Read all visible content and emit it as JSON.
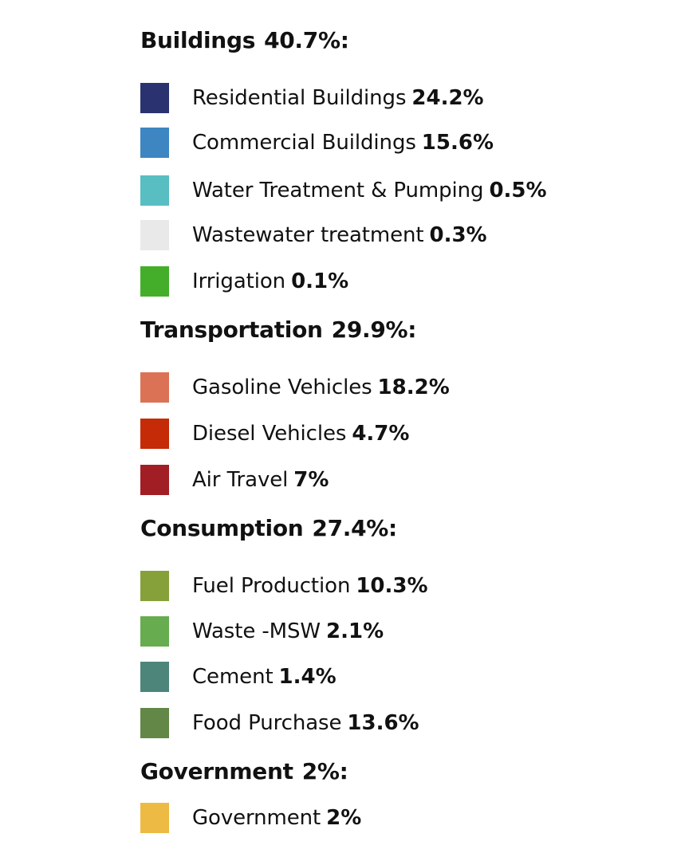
{
  "chart_data": {
    "type": "table",
    "title": "",
    "unit": "%",
    "groups": [
      {
        "name": "Buildings",
        "value_label": "40.7%:",
        "value": 40.7,
        "items": [
          {
            "label": "Residential Buildings",
            "value_label": "24.2%",
            "value": 24.2,
            "color": "#2b3270"
          },
          {
            "label": "Commercial Buildings",
            "value_label": "15.6%",
            "value": 15.6,
            "color": "#3d86c1"
          },
          {
            "label": "Water Treatment & Pumping",
            "value_label": "0.5%",
            "value": 0.5,
            "color": "#58bec2"
          },
          {
            "label": "Wastewater treatment",
            "value_label": "0.3%",
            "value": 0.3,
            "color": "#e9e9e9"
          },
          {
            "label": "Irrigation",
            "value_label": "0.1%",
            "value": 0.1,
            "color": "#44ae2b"
          }
        ]
      },
      {
        "name": "Transportation",
        "value_label": "29.9%:",
        "value": 29.9,
        "items": [
          {
            "label": "Gasoline Vehicles",
            "value_label": "18.2%",
            "value": 18.2,
            "color": "#dc7255"
          },
          {
            "label": "Diesel Vehicles",
            "value_label": "4.7%",
            "value": 4.7,
            "color": "#c42b06"
          },
          {
            "label": "Air Travel",
            "value_label": "7%",
            "value": 7,
            "color": "#a11f24"
          }
        ]
      },
      {
        "name": "Consumption",
        "value_label": "27.4%:",
        "value": 27.4,
        "items": [
          {
            "label": "Fuel Production",
            "value_label": "10.3%",
            "value": 10.3,
            "color": "#86a03a"
          },
          {
            "label": "Waste -MSW",
            "value_label": "2.1%",
            "value": 2.1,
            "color": "#68ac50"
          },
          {
            "label": "Cement",
            "value_label": "1.4%",
            "value": 1.4,
            "color": "#4e857b"
          },
          {
            "label": "Food Purchase",
            "value_label": "13.6%",
            "value": 13.6,
            "color": "#628746"
          }
        ]
      },
      {
        "name": "Government",
        "value_label": "2%:",
        "value": 2,
        "items": [
          {
            "label": "Government",
            "value_label": "2%",
            "value": 2,
            "color": "#edbb43"
          }
        ]
      }
    ]
  }
}
